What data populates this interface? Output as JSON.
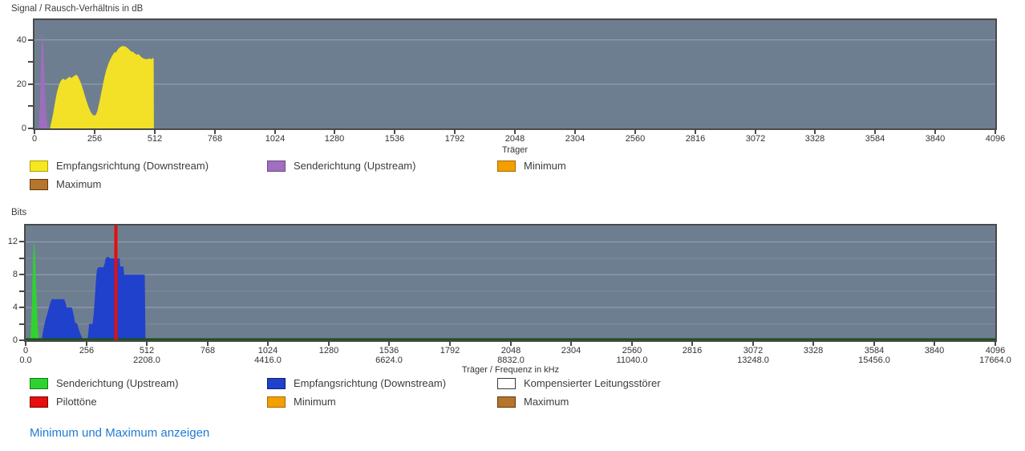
{
  "footer": {
    "link_label": "Minimum und Maximum anzeigen",
    "link_color": "#1f7bd4"
  },
  "chart_data": [
    {
      "type": "area",
      "title": "Signal / Rausch-Verhältnis in dB",
      "xlabel": "Träger",
      "ylabel": "",
      "xlim": [
        0,
        4096
      ],
      "ylim": [
        0,
        49
      ],
      "background": "#6e7e91",
      "legend_position": "below",
      "grid": [
        {
          "v": 20,
          "opacity": 0.3
        },
        {
          "v": 40,
          "opacity": 0.3
        }
      ],
      "yticks": [
        {
          "v": 0,
          "l": "0"
        },
        {
          "v": 10,
          "l": ""
        },
        {
          "v": 20,
          "l": "20"
        },
        {
          "v": 30,
          "l": ""
        },
        {
          "v": 40,
          "l": "40"
        }
      ],
      "xticks": [
        {
          "v": 0,
          "l": "0"
        },
        {
          "v": 256,
          "l": "256"
        },
        {
          "v": 512,
          "l": "512"
        },
        {
          "v": 768,
          "l": "768"
        },
        {
          "v": 1024,
          "l": "1024"
        },
        {
          "v": 1280,
          "l": "1280"
        },
        {
          "v": 1536,
          "l": "1536"
        },
        {
          "v": 1792,
          "l": "1792"
        },
        {
          "v": 2048,
          "l": "2048"
        },
        {
          "v": 2304,
          "l": "2304"
        },
        {
          "v": 2560,
          "l": "2560"
        },
        {
          "v": 2816,
          "l": "2816"
        },
        {
          "v": 3072,
          "l": "3072"
        },
        {
          "v": 3328,
          "l": "3328"
        },
        {
          "v": 3584,
          "l": "3584"
        },
        {
          "v": 3840,
          "l": "3840"
        },
        {
          "v": 4096,
          "l": "4096"
        }
      ],
      "series": [
        {
          "name": "Senderichtung (Upstream)",
          "dn": "upstream-snr-area",
          "kind": "area",
          "color": "#9f6dbd",
          "points": [
            [
              18,
              0
            ],
            [
              24,
              12
            ],
            [
              28,
              30
            ],
            [
              32,
              42.5
            ],
            [
              36,
              41.5
            ],
            [
              41,
              28
            ],
            [
              46,
              13
            ],
            [
              52,
              4
            ],
            [
              57,
              0
            ]
          ]
        },
        {
          "name": "Empfangsrichtung (Downstream)",
          "dn": "downstream-snr-area",
          "kind": "area",
          "color": "#f2e126",
          "points": [
            [
              66,
              0
            ],
            [
              72,
              3
            ],
            [
              80,
              7
            ],
            [
              88,
              12
            ],
            [
              96,
              16.5
            ],
            [
              104,
              19.5
            ],
            [
              112,
              21.5
            ],
            [
              119,
              22.3
            ],
            [
              125,
              22.4
            ],
            [
              130,
              21.8
            ],
            [
              137,
              22.4
            ],
            [
              145,
              23.0
            ],
            [
              151,
              23.4
            ],
            [
              157,
              22.8
            ],
            [
              164,
              23.3
            ],
            [
              171,
              23.9
            ],
            [
              178,
              24.3
            ],
            [
              184,
              23.7
            ],
            [
              190,
              22.4
            ],
            [
              197,
              20.8
            ],
            [
              205,
              18.2
            ],
            [
              213,
              15.4
            ],
            [
              221,
              12.6
            ],
            [
              230,
              9.8
            ],
            [
              239,
              7.6
            ],
            [
              247,
              6.3
            ],
            [
              254,
              5.8
            ],
            [
              261,
              6.1
            ],
            [
              268,
              7.8
            ],
            [
              276,
              11.5
            ],
            [
              284,
              15.8
            ],
            [
              292,
              20.0
            ],
            [
              299,
              23.6
            ],
            [
              307,
              26.8
            ],
            [
              315,
              29.2
            ],
            [
              323,
              31.2
            ],
            [
              330,
              32.6
            ],
            [
              337,
              33.9
            ],
            [
              343,
              34.6
            ],
            [
              347,
              34.2
            ],
            [
              353,
              35.4
            ],
            [
              360,
              36.3
            ],
            [
              368,
              36.9
            ],
            [
              375,
              37.2
            ],
            [
              382,
              37.2
            ],
            [
              389,
              36.9
            ],
            [
              396,
              36.4
            ],
            [
              404,
              35.6
            ],
            [
              410,
              35.0
            ],
            [
              415,
              34.6
            ],
            [
              419,
              34.8
            ],
            [
              425,
              34.1
            ],
            [
              431,
              33.6
            ],
            [
              437,
              33.3
            ],
            [
              443,
              33.7
            ],
            [
              449,
              33.0
            ],
            [
              455,
              32.3
            ],
            [
              461,
              31.8
            ],
            [
              468,
              31.5
            ],
            [
              476,
              31.3
            ],
            [
              484,
              31.4
            ],
            [
              492,
              31.6
            ],
            [
              499,
              31.3
            ],
            [
              505,
              31.9
            ],
            [
              508,
              31.6
            ],
            [
              509,
              0
            ]
          ]
        }
      ],
      "legend": [
        {
          "label": "Empfangsrichtung (Downstream)",
          "color": "#f5e81f",
          "border": "#b19b08",
          "icon": "downstream-swatch-icon"
        },
        {
          "label": "Senderichtung (Upstream)",
          "color": "#a06fc0",
          "border": "#6b4a84",
          "icon": "upstream-swatch-icon"
        },
        {
          "label": "Minimum",
          "color": "#f59e00",
          "border": "#a56a00",
          "icon": "minimum-swatch-icon"
        },
        {
          "label": "Maximum",
          "color": "#b5752c",
          "border": "#64390e",
          "icon": "maximum-swatch-icon"
        }
      ]
    },
    {
      "type": "area",
      "title": "Bits",
      "xlabel": "Träger / Frequenz in kHz",
      "ylabel": "",
      "xlim": [
        0,
        4096
      ],
      "ylim": [
        0,
        14
      ],
      "background": "#6e7e91",
      "legend_position": "below",
      "grid": [
        {
          "v": 2,
          "opacity": 0.12
        },
        {
          "v": 4,
          "opacity": 0.3
        },
        {
          "v": 6,
          "opacity": 0.12
        },
        {
          "v": 8,
          "opacity": 0.3
        },
        {
          "v": 10,
          "opacity": 0.12
        },
        {
          "v": 12,
          "opacity": 0.3
        }
      ],
      "yticks": [
        {
          "v": 0,
          "l": "0"
        },
        {
          "v": 2,
          "l": ""
        },
        {
          "v": 4,
          "l": "4"
        },
        {
          "v": 6,
          "l": ""
        },
        {
          "v": 8,
          "l": "8"
        },
        {
          "v": 10,
          "l": ""
        },
        {
          "v": 12,
          "l": "12"
        }
      ],
      "xticks": [
        {
          "v": 0,
          "l": "0",
          "l2": "0.0"
        },
        {
          "v": 256,
          "l": "256"
        },
        {
          "v": 512,
          "l": "512",
          "l2": "2208.0"
        },
        {
          "v": 768,
          "l": "768"
        },
        {
          "v": 1024,
          "l": "1024",
          "l2": "4416.0"
        },
        {
          "v": 1280,
          "l": "1280"
        },
        {
          "v": 1536,
          "l": "1536",
          "l2": "6624.0"
        },
        {
          "v": 1792,
          "l": "1792"
        },
        {
          "v": 2048,
          "l": "2048",
          "l2": "8832.0"
        },
        {
          "v": 2304,
          "l": "2304"
        },
        {
          "v": 2560,
          "l": "2560",
          "l2": "11040.0"
        },
        {
          "v": 2816,
          "l": "2816"
        },
        {
          "v": 3072,
          "l": "3072",
          "l2": "13248.0"
        },
        {
          "v": 3328,
          "l": "3328"
        },
        {
          "v": 3584,
          "l": "3584",
          "l2": "15456.0"
        },
        {
          "v": 3840,
          "l": "3840"
        },
        {
          "v": 4096,
          "l": "4096",
          "l2": "17664.0"
        }
      ],
      "series": [
        {
          "name": "Empfangsrichtung (Downstream)",
          "dn": "downstream-bits-area",
          "kind": "area",
          "color": "#2041cc",
          "points": [
            [
              67,
              0
            ],
            [
              74,
              1.2
            ],
            [
              83,
              2.4
            ],
            [
              93,
              3.4
            ],
            [
              102,
              4.4
            ],
            [
              110,
              5
            ],
            [
              163,
              5
            ],
            [
              169,
              4.5
            ],
            [
              173,
              4
            ],
            [
              195,
              4
            ],
            [
              202,
              3.2
            ],
            [
              208,
              2.2
            ],
            [
              218,
              2
            ],
            [
              226,
              1.2
            ],
            [
              235,
              0.5
            ],
            [
              243,
              0
            ],
            [
              261,
              0
            ],
            [
              265,
              1
            ],
            [
              268,
              2
            ],
            [
              283,
              2
            ],
            [
              288,
              3.4
            ],
            [
              293,
              5.5
            ],
            [
              298,
              7.8
            ],
            [
              302,
              8.7
            ],
            [
              308,
              8.9
            ],
            [
              328,
              8.9
            ],
            [
              333,
              9.3
            ],
            [
              338,
              10
            ],
            [
              348,
              10.2
            ],
            [
              356,
              10
            ],
            [
              397,
              10
            ],
            [
              399,
              9
            ],
            [
              413,
              9
            ],
            [
              416,
              8
            ],
            [
              503,
              8
            ],
            [
              506,
              0
            ]
          ]
        },
        {
          "name": "Senderichtung (Upstream)",
          "dn": "upstream-bits-area",
          "kind": "area",
          "color": "#2fd32f",
          "points": [
            [
              20,
              0
            ],
            [
              26,
              4
            ],
            [
              31,
              9.5
            ],
            [
              35,
              12
            ],
            [
              39,
              11
            ],
            [
              44,
              6.5
            ],
            [
              50,
              2
            ],
            [
              56,
              0
            ]
          ]
        },
        {
          "name": "Senderichtung (Upstream) Nulllinie",
          "dn": "upstream-zero-line",
          "kind": "hline",
          "color": "#1d511d",
          "y": 0,
          "h": 2.5
        },
        {
          "name": "Pilottöne",
          "dn": "pilot-tone-line",
          "kind": "vline",
          "color": "#e60e0e",
          "x": 381,
          "w": 4
        }
      ],
      "legend": [
        {
          "label": "Senderichtung (Upstream)",
          "color": "#2fd32f",
          "border": "#127c12",
          "icon": "upstream-swatch-icon"
        },
        {
          "label": "Empfangsrichtung (Downstream)",
          "color": "#2041cc",
          "border": "#101d72",
          "icon": "downstream-swatch-icon"
        },
        {
          "label": "Kompensierter Leitungsstörer",
          "color": "#ffffff",
          "border": "#3a3a3a",
          "icon": "kompensierter-leitungsstoerer-swatch-icon"
        },
        {
          "label": "Pilottöne",
          "color": "#e60e0e",
          "border": "#7c0202",
          "icon": "pilottoene-swatch-icon"
        },
        {
          "label": "Minimum",
          "color": "#f59e00",
          "border": "#a56a00",
          "icon": "minimum-swatch-icon"
        },
        {
          "label": "Maximum",
          "color": "#b5752c",
          "border": "#64390e",
          "icon": "maximum-swatch-icon"
        }
      ]
    }
  ]
}
